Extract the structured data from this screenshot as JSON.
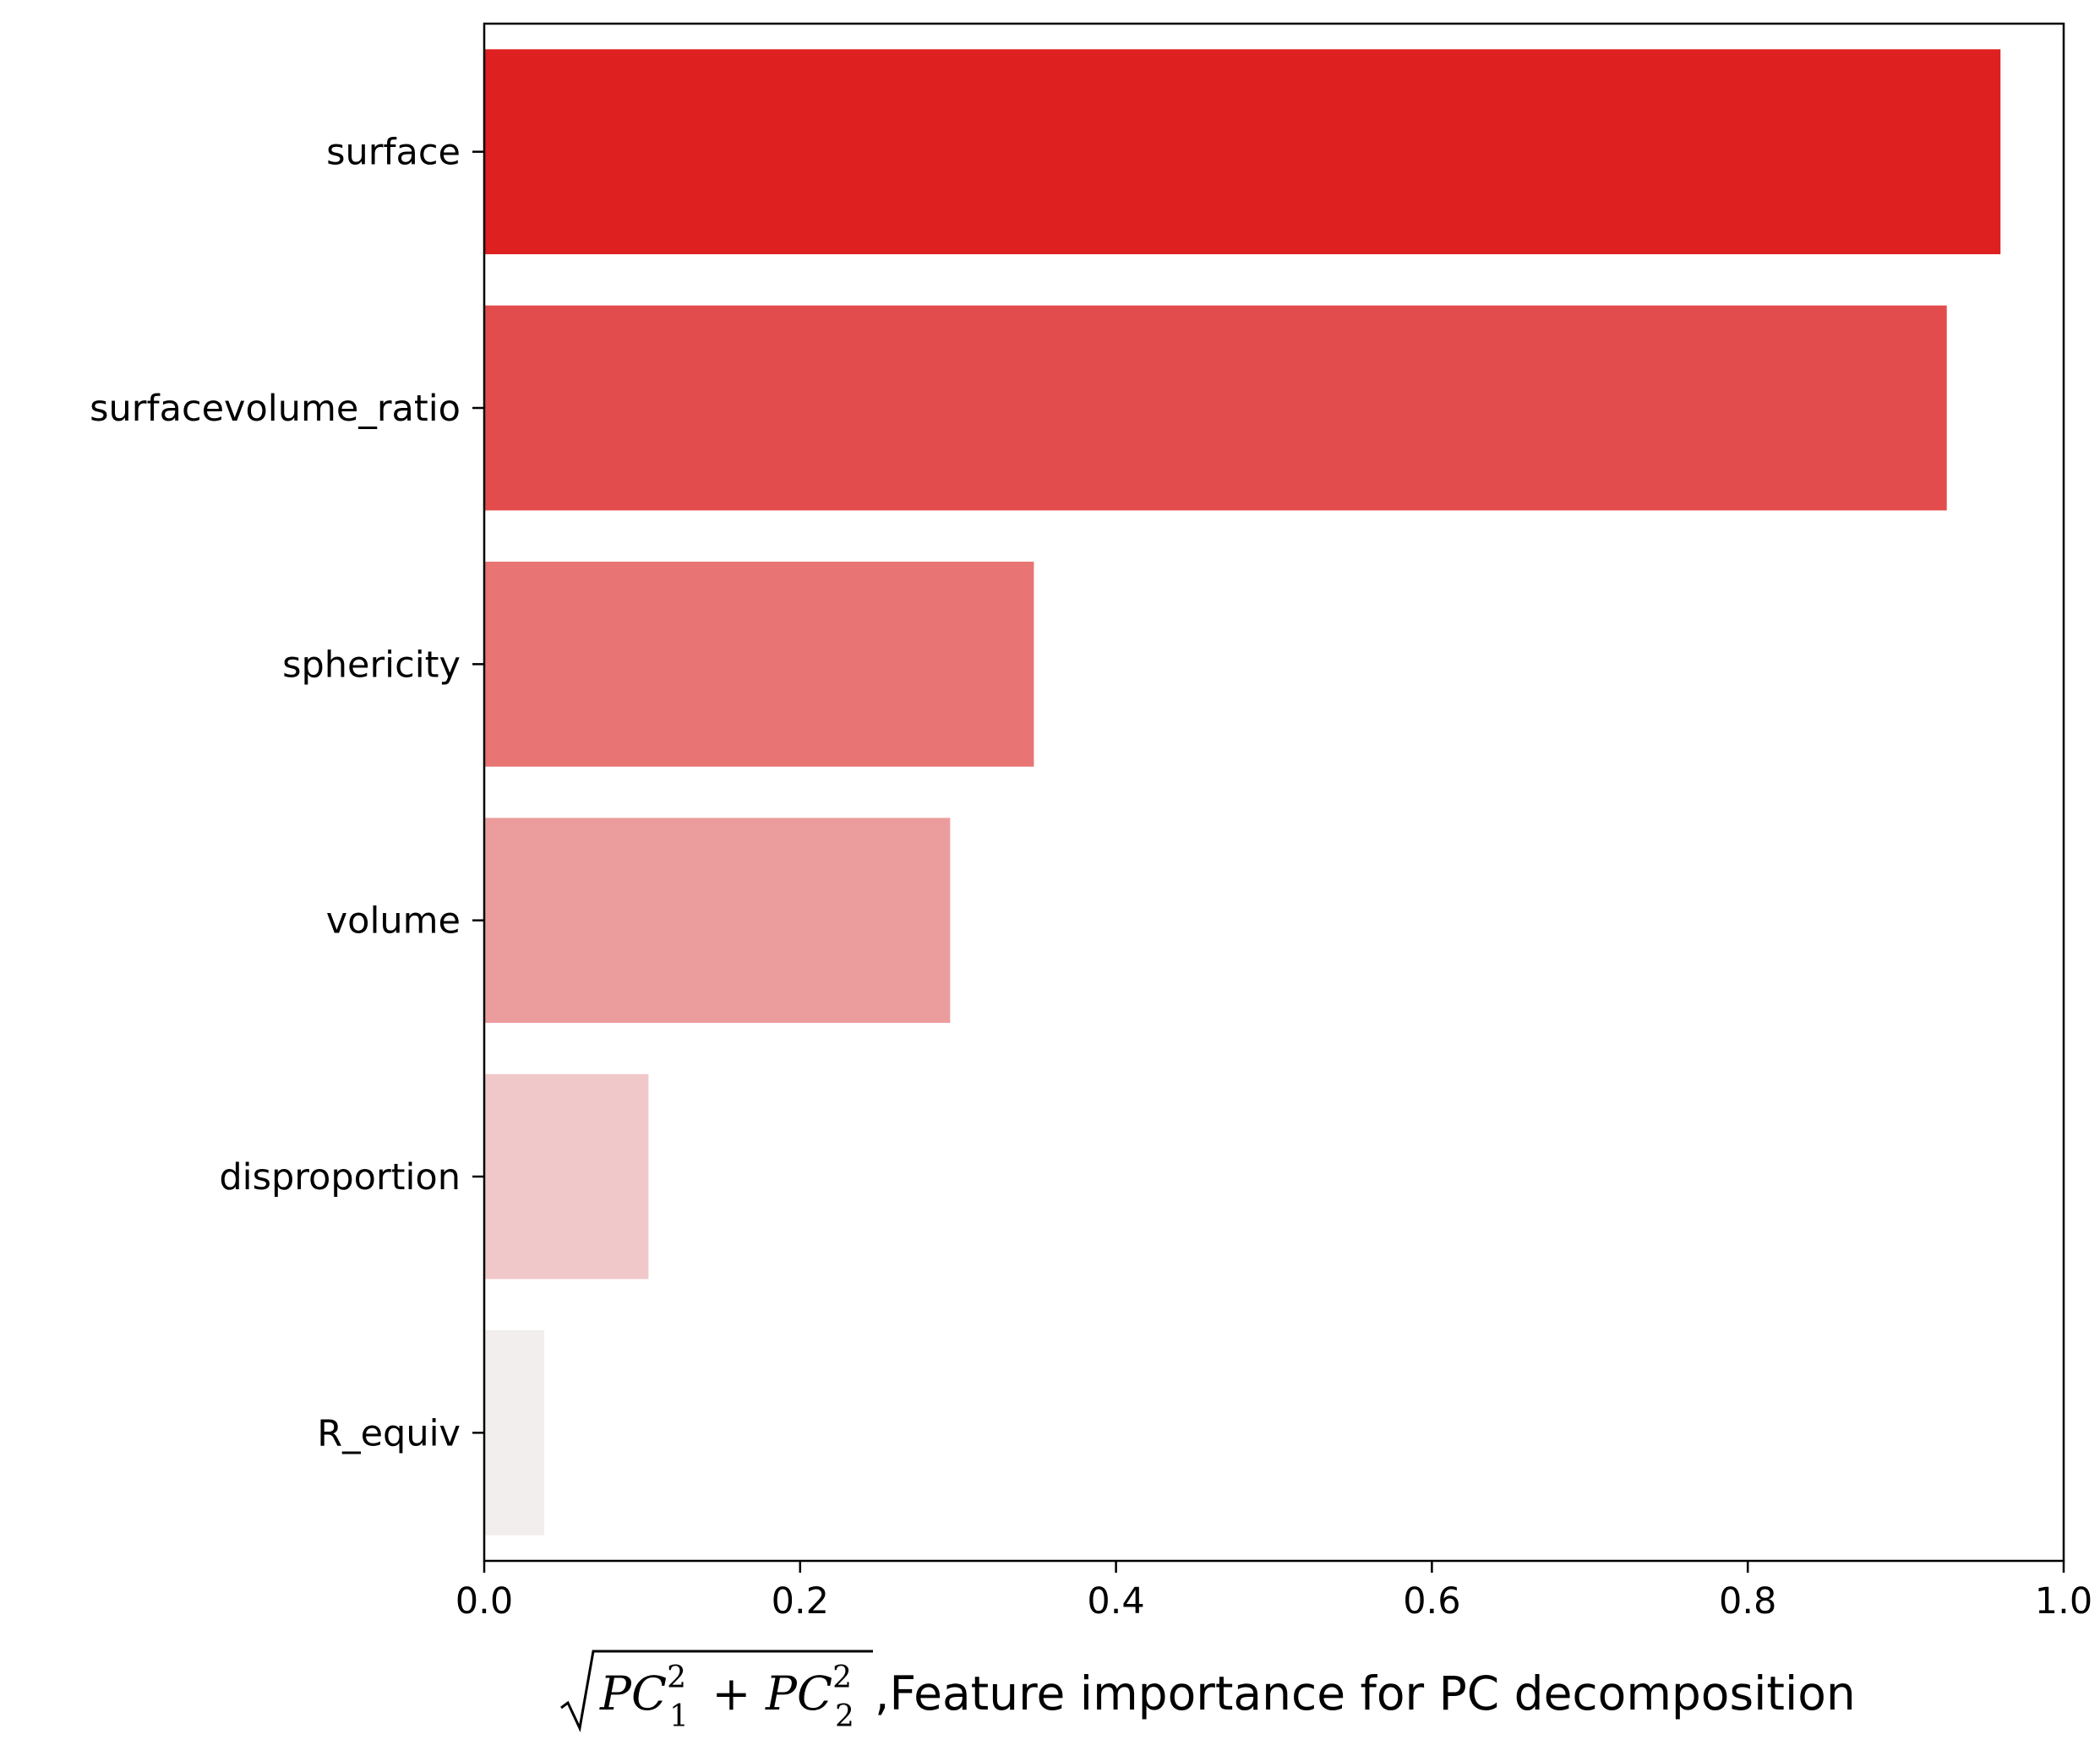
{
  "chart_data": {
    "type": "bar",
    "orientation": "horizontal",
    "categories": [
      "surface",
      "surfacevolume_ratio",
      "sphericity",
      "volume",
      "disproportion",
      "R_equiv"
    ],
    "values": [
      0.96,
      0.926,
      0.348,
      0.295,
      0.104,
      0.038
    ],
    "colors": [
      "#de2020",
      "#e34c4c",
      "#e87474",
      "#eb9d9d",
      "#f0c8c9",
      "#f2eeee"
    ],
    "xlabel_math": "√(PC₁² + PC₂²)",
    "xlabel": ",Feature importance for PC decomposition",
    "xlim": [
      0,
      1.0
    ],
    "xticks": [
      0.0,
      0.2,
      0.4,
      0.6,
      0.8,
      1.0
    ],
    "xtick_labels": [
      "0.0",
      "0.2",
      "0.4",
      "0.6",
      "0.8",
      "1.0"
    ],
    "grid": false,
    "legend": "none"
  }
}
